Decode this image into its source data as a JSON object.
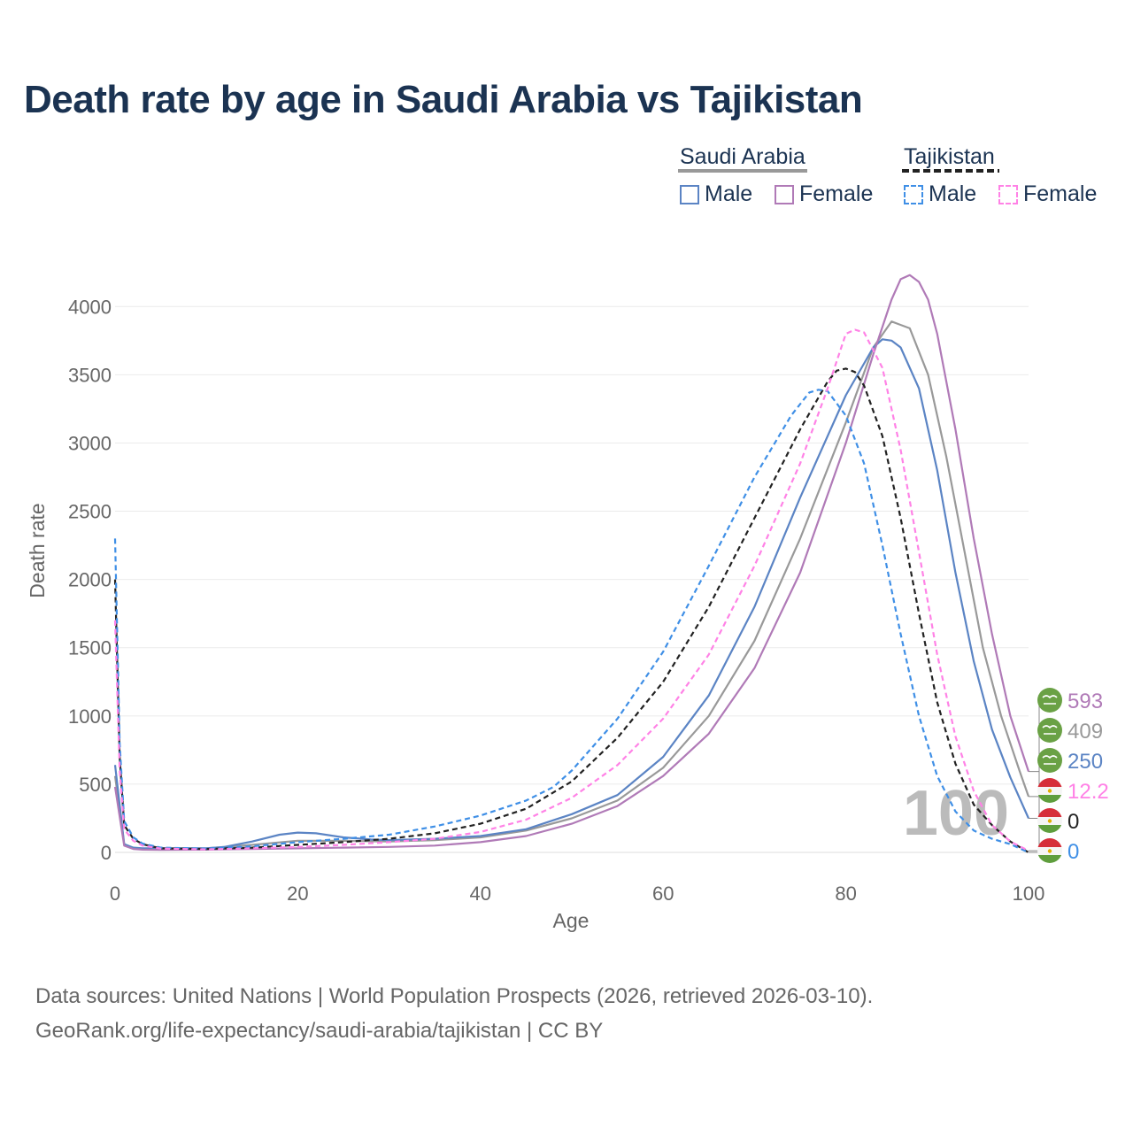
{
  "title": "Death rate by age in Saudi Arabia vs Tajikistan",
  "legend": {
    "groups": [
      {
        "name": "Saudi Arabia",
        "style": "solid",
        "color": "#999999",
        "items": [
          {
            "label": "Male",
            "color": "#5b84c4"
          },
          {
            "label": "Female",
            "color": "#b07ab7"
          }
        ]
      },
      {
        "name": "Tajikistan",
        "style": "dashed",
        "color": "#222222",
        "items": [
          {
            "label": "Male",
            "color": "#3f8fe6"
          },
          {
            "label": "Female",
            "color": "#ff82e6"
          }
        ]
      }
    ]
  },
  "watermark": "100",
  "source_line1": "Data sources: United Nations | World Population Prospects (2026, retrieved 2026-03-10).",
  "source_line2": "GeoRank.org/life-expectancy/saudi-arabia/tajikistan | CC BY",
  "chart_data": {
    "type": "line",
    "title": "Death rate by age in Saudi Arabia vs Tajikistan",
    "xlabel": "Age",
    "ylabel": "Death rate",
    "xlim": [
      0,
      100
    ],
    "ylim": [
      0,
      4300
    ],
    "xticks": [
      0,
      20,
      40,
      60,
      80,
      100
    ],
    "yticks": [
      0,
      500,
      1000,
      1500,
      2000,
      2500,
      3000,
      3500,
      4000
    ],
    "grid": true,
    "legend_position": "top-right",
    "series": [
      {
        "name": "Saudi Arabia Total",
        "color": "#999999",
        "dash": "solid",
        "points": [
          [
            0,
            560
          ],
          [
            1,
            60
          ],
          [
            2,
            30
          ],
          [
            3,
            25
          ],
          [
            5,
            25
          ],
          [
            10,
            30
          ],
          [
            15,
            55
          ],
          [
            20,
            85
          ],
          [
            25,
            85
          ],
          [
            30,
            80
          ],
          [
            35,
            90
          ],
          [
            40,
            110
          ],
          [
            45,
            160
          ],
          [
            50,
            250
          ],
          [
            55,
            380
          ],
          [
            60,
            620
          ],
          [
            65,
            1000
          ],
          [
            70,
            1550
          ],
          [
            75,
            2300
          ],
          [
            80,
            3150
          ],
          [
            83,
            3700
          ],
          [
            85,
            3890
          ],
          [
            87,
            3840
          ],
          [
            89,
            3500
          ],
          [
            91,
            2900
          ],
          [
            93,
            2200
          ],
          [
            95,
            1500
          ],
          [
            97,
            1000
          ],
          [
            99,
            600
          ],
          [
            100,
            409
          ]
        ],
        "end_value": "409"
      },
      {
        "name": "Saudi Arabia Male",
        "color": "#5b84c4",
        "dash": "solid",
        "points": [
          [
            0,
            640
          ],
          [
            1,
            60
          ],
          [
            2,
            35
          ],
          [
            3,
            30
          ],
          [
            5,
            30
          ],
          [
            10,
            30
          ],
          [
            12,
            40
          ],
          [
            15,
            80
          ],
          [
            18,
            130
          ],
          [
            20,
            145
          ],
          [
            22,
            140
          ],
          [
            25,
            110
          ],
          [
            28,
            95
          ],
          [
            30,
            90
          ],
          [
            35,
            100
          ],
          [
            40,
            120
          ],
          [
            45,
            170
          ],
          [
            50,
            280
          ],
          [
            55,
            420
          ],
          [
            60,
            700
          ],
          [
            65,
            1150
          ],
          [
            70,
            1800
          ],
          [
            75,
            2600
          ],
          [
            80,
            3350
          ],
          [
            83,
            3700
          ],
          [
            84,
            3760
          ],
          [
            85,
            3750
          ],
          [
            86,
            3700
          ],
          [
            88,
            3400
          ],
          [
            90,
            2800
          ],
          [
            92,
            2050
          ],
          [
            94,
            1400
          ],
          [
            96,
            900
          ],
          [
            98,
            550
          ],
          [
            100,
            250
          ]
        ],
        "end_value": "250"
      },
      {
        "name": "Saudi Arabia Female",
        "color": "#b07ab7",
        "dash": "solid",
        "points": [
          [
            0,
            480
          ],
          [
            1,
            50
          ],
          [
            2,
            25
          ],
          [
            3,
            20
          ],
          [
            5,
            18
          ],
          [
            10,
            20
          ],
          [
            15,
            25
          ],
          [
            20,
            30
          ],
          [
            25,
            35
          ],
          [
            30,
            40
          ],
          [
            35,
            50
          ],
          [
            40,
            75
          ],
          [
            45,
            120
          ],
          [
            50,
            210
          ],
          [
            55,
            340
          ],
          [
            60,
            560
          ],
          [
            65,
            870
          ],
          [
            70,
            1350
          ],
          [
            75,
            2050
          ],
          [
            80,
            3000
          ],
          [
            83,
            3650
          ],
          [
            85,
            4050
          ],
          [
            86,
            4200
          ],
          [
            87,
            4230
          ],
          [
            88,
            4180
          ],
          [
            89,
            4050
          ],
          [
            90,
            3800
          ],
          [
            92,
            3100
          ],
          [
            94,
            2300
          ],
          [
            96,
            1600
          ],
          [
            98,
            1000
          ],
          [
            100,
            593
          ]
        ],
        "end_value": "593"
      },
      {
        "name": "Tajikistan Total",
        "color": "#222222",
        "dash": "dashed",
        "points": [
          [
            0,
            2000
          ],
          [
            0.5,
            700
          ],
          [
            1,
            200
          ],
          [
            2,
            100
          ],
          [
            3,
            60
          ],
          [
            5,
            30
          ],
          [
            10,
            25
          ],
          [
            15,
            35
          ],
          [
            20,
            55
          ],
          [
            25,
            75
          ],
          [
            30,
            100
          ],
          [
            35,
            140
          ],
          [
            40,
            210
          ],
          [
            45,
            320
          ],
          [
            50,
            520
          ],
          [
            55,
            840
          ],
          [
            60,
            1250
          ],
          [
            65,
            1800
          ],
          [
            70,
            2450
          ],
          [
            75,
            3100
          ],
          [
            78,
            3450
          ],
          [
            79,
            3530
          ],
          [
            80,
            3545
          ],
          [
            81,
            3520
          ],
          [
            82,
            3420
          ],
          [
            84,
            3050
          ],
          [
            86,
            2450
          ],
          [
            88,
            1750
          ],
          [
            90,
            1100
          ],
          [
            92,
            650
          ],
          [
            94,
            350
          ],
          [
            96,
            200
          ],
          [
            98,
            80
          ],
          [
            100,
            0
          ]
        ],
        "end_value": "0"
      },
      {
        "name": "Tajikistan Male",
        "color": "#3f8fe6",
        "dash": "dashed",
        "points": [
          [
            0,
            2300
          ],
          [
            0.5,
            800
          ],
          [
            1,
            230
          ],
          [
            2,
            110
          ],
          [
            3,
            65
          ],
          [
            5,
            35
          ],
          [
            10,
            28
          ],
          [
            15,
            45
          ],
          [
            20,
            75
          ],
          [
            25,
            100
          ],
          [
            30,
            130
          ],
          [
            35,
            190
          ],
          [
            40,
            270
          ],
          [
            45,
            380
          ],
          [
            48,
            480
          ],
          [
            50,
            600
          ],
          [
            55,
            980
          ],
          [
            60,
            1470
          ],
          [
            65,
            2100
          ],
          [
            70,
            2750
          ],
          [
            74,
            3200
          ],
          [
            76,
            3370
          ],
          [
            77,
            3390
          ],
          [
            78,
            3380
          ],
          [
            80,
            3200
          ],
          [
            82,
            2850
          ],
          [
            84,
            2250
          ],
          [
            86,
            1600
          ],
          [
            88,
            1000
          ],
          [
            90,
            560
          ],
          [
            92,
            300
          ],
          [
            94,
            160
          ],
          [
            96,
            100
          ],
          [
            98,
            60
          ],
          [
            100,
            0
          ]
        ],
        "end_value": "0"
      },
      {
        "name": "Tajikistan Female",
        "color": "#ff82e6",
        "dash": "dashed",
        "points": [
          [
            0,
            1700
          ],
          [
            0.5,
            600
          ],
          [
            1,
            170
          ],
          [
            2,
            85
          ],
          [
            3,
            50
          ],
          [
            5,
            28
          ],
          [
            10,
            22
          ],
          [
            15,
            30
          ],
          [
            20,
            40
          ],
          [
            25,
            55
          ],
          [
            30,
            75
          ],
          [
            35,
            100
          ],
          [
            40,
            150
          ],
          [
            45,
            240
          ],
          [
            50,
            400
          ],
          [
            55,
            640
          ],
          [
            60,
            980
          ],
          [
            65,
            1450
          ],
          [
            70,
            2100
          ],
          [
            75,
            2850
          ],
          [
            78,
            3400
          ],
          [
            80,
            3800
          ],
          [
            81,
            3830
          ],
          [
            82,
            3810
          ],
          [
            84,
            3550
          ],
          [
            86,
            2950
          ],
          [
            88,
            2200
          ],
          [
            90,
            1450
          ],
          [
            92,
            850
          ],
          [
            94,
            450
          ],
          [
            96,
            200
          ],
          [
            98,
            80
          ],
          [
            100,
            12.2
          ]
        ],
        "end_value": "12.2"
      }
    ]
  }
}
